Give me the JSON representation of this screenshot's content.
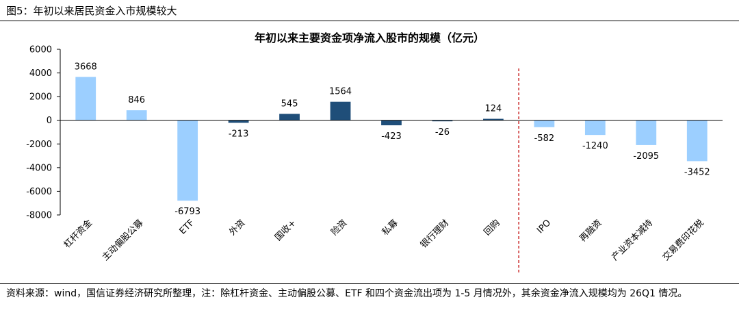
{
  "figure_title": "图5：年初以来居民资金入市规模较大",
  "source_note": "资料来源：wind，国信证券经济研究所整理，注：除杠杆资金、主动偏股公募、ETF 和四个资金流出项为 1-5 月情况外，其余资金净流入规模均为 26Q1 情况。",
  "chart_data": {
    "type": "bar",
    "title": "年初以来主要资金项净流入股市的规模（亿元）",
    "categories": [
      "杠杆资金",
      "主动偏股公募",
      "ETF",
      "外资",
      "国收+",
      "险资",
      "私募",
      "银行理财",
      "回购",
      "IPO",
      "再融资",
      "产业资本减持",
      "交易费印花税"
    ],
    "values": [
      3668,
      846,
      -6793,
      -213,
      545,
      1564,
      -423,
      -26,
      124,
      -582,
      -1240,
      -2095,
      -3452
    ],
    "data_labels": [
      "3668",
      "846",
      "-6793",
      "-213",
      "545",
      "1564",
      "-423",
      "-26",
      "124",
      "-582",
      "-1240",
      "-2095",
      "-3452"
    ],
    "ylim": [
      -8000,
      6000
    ],
    "yticks": [
      6000,
      4000,
      2000,
      0,
      -2000,
      -4000,
      -6000,
      -8000
    ],
    "ytick_labels": [
      "6000",
      "4000",
      "2000",
      "0",
      "-2000",
      "-4000",
      "-6000",
      "-8000"
    ],
    "bar_colors": [
      "#9ccfff",
      "#9ccfff",
      "#9ccfff",
      "#1f4e79",
      "#1f4e79",
      "#1f4e79",
      "#1f4e79",
      "#1f4e79",
      "#1f4e79",
      "#9ccfff",
      "#9ccfff",
      "#9ccfff",
      "#9ccfff"
    ],
    "divider_after_index": 8,
    "divider_color": "#c00000",
    "grid": false,
    "legend": "none"
  }
}
